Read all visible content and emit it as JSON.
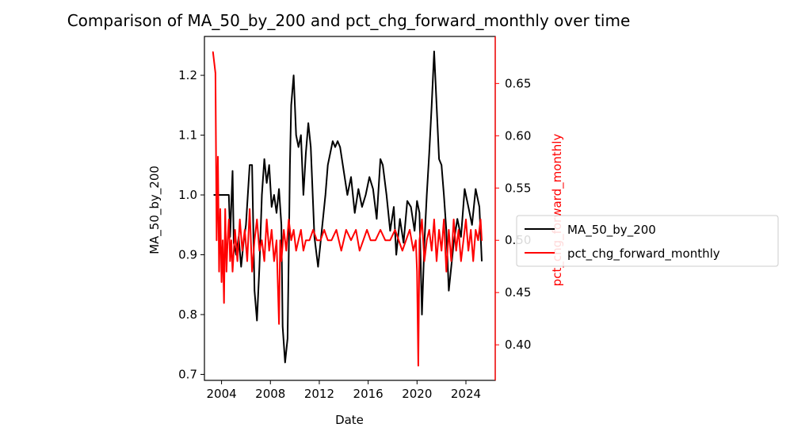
{
  "chart_data": {
    "type": "line",
    "title": "Comparison of MA_50_by_200 and pct_chg_forward_monthly over time",
    "xlabel": "Date",
    "ylabel_left": "MA_50_by_200",
    "ylabel_right": "pct_chg_forward_monthly",
    "xlim": [
      2002.6,
      2026.4
    ],
    "ylim_left": [
      0.69,
      1.265
    ],
    "ylim_right": [
      0.366,
      0.695
    ],
    "x_ticks": [
      "2004",
      "2008",
      "2012",
      "2016",
      "2020",
      "2024"
    ],
    "y_left_ticks": [
      "0.7",
      "0.8",
      "0.9",
      "1.0",
      "1.1",
      "1.2"
    ],
    "y_right_ticks": [
      "0.40",
      "0.45",
      "0.50",
      "0.55",
      "0.60",
      "0.65"
    ],
    "grid": false,
    "legend_position": "center-right-outside",
    "series": [
      {
        "name": "MA_50_by_200",
        "axis": "left",
        "color": "#000000",
        "x": [
          2003.4,
          2004.6,
          2004.7,
          2004.9,
          2005.0,
          2005.2,
          2005.4,
          2005.6,
          2005.8,
          2006.0,
          2006.3,
          2006.5,
          2006.7,
          2006.9,
          2007.1,
          2007.3,
          2007.5,
          2007.7,
          2007.9,
          2008.1,
          2008.3,
          2008.5,
          2008.7,
          2008.9,
          2009.0,
          2009.2,
          2009.4,
          2009.5,
          2009.6,
          2009.7,
          2009.9,
          2010.1,
          2010.3,
          2010.5,
          2010.7,
          2010.9,
          2011.1,
          2011.3,
          2011.6,
          2011.9,
          2012.1,
          2012.3,
          2012.5,
          2012.7,
          2012.9,
          2013.1,
          2013.3,
          2013.5,
          2013.7,
          2014.0,
          2014.3,
          2014.6,
          2014.9,
          2015.2,
          2015.5,
          2015.8,
          2016.1,
          2016.4,
          2016.7,
          2017.0,
          2017.2,
          2017.5,
          2017.8,
          2018.1,
          2018.3,
          2018.6,
          2018.9,
          2019.2,
          2019.5,
          2019.8,
          2020.0,
          2020.2,
          2020.4,
          2020.6,
          2020.8,
          2021.0,
          2021.2,
          2021.4,
          2021.6,
          2021.8,
          2022.0,
          2022.2,
          2022.4,
          2022.6,
          2022.8,
          2023.0,
          2023.3,
          2023.6,
          2023.9,
          2024.2,
          2024.5,
          2024.8,
          2025.1,
          2025.3
        ],
        "y": [
          1.0,
          1.0,
          0.93,
          1.04,
          0.92,
          0.9,
          0.93,
          0.88,
          0.92,
          0.95,
          1.05,
          1.05,
          0.84,
          0.79,
          0.88,
          1.0,
          1.06,
          1.02,
          1.05,
          0.98,
          1.0,
          0.97,
          1.01,
          0.95,
          0.78,
          0.72,
          0.76,
          0.9,
          1.05,
          1.15,
          1.2,
          1.1,
          1.08,
          1.1,
          1.0,
          1.07,
          1.12,
          1.08,
          0.93,
          0.88,
          0.92,
          0.96,
          1.0,
          1.05,
          1.07,
          1.09,
          1.08,
          1.09,
          1.08,
          1.04,
          1.0,
          1.03,
          0.97,
          1.01,
          0.98,
          1.0,
          1.03,
          1.01,
          0.96,
          1.06,
          1.05,
          1.0,
          0.94,
          0.98,
          0.9,
          0.96,
          0.92,
          0.99,
          0.98,
          0.94,
          0.99,
          0.97,
          0.8,
          0.92,
          1.0,
          1.07,
          1.15,
          1.24,
          1.15,
          1.06,
          1.05,
          1.0,
          0.94,
          0.84,
          0.88,
          0.92,
          0.96,
          0.93,
          1.01,
          0.98,
          0.95,
          1.01,
          0.98,
          0.89
        ]
      },
      {
        "name": "pct_chg_forward_monthly",
        "axis": "right",
        "color": "#ff0000",
        "x": [
          2003.3,
          2003.5,
          2003.6,
          2003.7,
          2003.8,
          2003.9,
          2004.0,
          2004.1,
          2004.2,
          2004.3,
          2004.4,
          2004.5,
          2004.6,
          2004.7,
          2004.8,
          2004.9,
          2005.1,
          2005.3,
          2005.5,
          2005.7,
          2005.9,
          2006.1,
          2006.3,
          2006.5,
          2006.7,
          2006.9,
          2007.1,
          2007.3,
          2007.5,
          2007.7,
          2007.9,
          2008.1,
          2008.3,
          2008.5,
          2008.7,
          2008.8,
          2008.9,
          2009.1,
          2009.3,
          2009.5,
          2009.7,
          2009.9,
          2010.1,
          2010.3,
          2010.5,
          2010.7,
          2010.9,
          2011.2,
          2011.5,
          2011.8,
          2012.1,
          2012.4,
          2012.7,
          2013.0,
          2013.4,
          2013.8,
          2014.2,
          2014.6,
          2015.0,
          2015.3,
          2015.6,
          2015.9,
          2016.2,
          2016.6,
          2017.0,
          2017.4,
          2017.8,
          2018.2,
          2018.5,
          2018.8,
          2019.1,
          2019.4,
          2019.7,
          2019.9,
          2020.0,
          2020.1,
          2020.2,
          2020.4,
          2020.6,
          2020.8,
          2021.0,
          2021.2,
          2021.4,
          2021.6,
          2021.8,
          2022.0,
          2022.2,
          2022.4,
          2022.6,
          2022.8,
          2023.0,
          2023.2,
          2023.4,
          2023.6,
          2023.8,
          2024.0,
          2024.2,
          2024.4,
          2024.6,
          2024.8,
          2025.0,
          2025.2,
          2025.3
        ],
        "y": [
          0.68,
          0.66,
          0.5,
          0.58,
          0.47,
          0.53,
          0.46,
          0.5,
          0.44,
          0.53,
          0.47,
          0.5,
          0.52,
          0.48,
          0.5,
          0.47,
          0.51,
          0.48,
          0.52,
          0.49,
          0.51,
          0.48,
          0.53,
          0.47,
          0.5,
          0.52,
          0.49,
          0.5,
          0.48,
          0.52,
          0.49,
          0.51,
          0.48,
          0.5,
          0.42,
          0.5,
          0.48,
          0.51,
          0.49,
          0.52,
          0.5,
          0.51,
          0.49,
          0.5,
          0.51,
          0.49,
          0.5,
          0.5,
          0.51,
          0.5,
          0.5,
          0.51,
          0.5,
          0.5,
          0.51,
          0.49,
          0.51,
          0.5,
          0.51,
          0.49,
          0.5,
          0.51,
          0.5,
          0.5,
          0.51,
          0.5,
          0.5,
          0.51,
          0.5,
          0.49,
          0.5,
          0.51,
          0.49,
          0.5,
          0.47,
          0.38,
          0.5,
          0.52,
          0.48,
          0.5,
          0.51,
          0.49,
          0.52,
          0.48,
          0.51,
          0.49,
          0.52,
          0.47,
          0.51,
          0.48,
          0.52,
          0.49,
          0.51,
          0.48,
          0.5,
          0.52,
          0.49,
          0.51,
          0.48,
          0.51,
          0.5,
          0.52,
          0.5
        ]
      }
    ]
  }
}
